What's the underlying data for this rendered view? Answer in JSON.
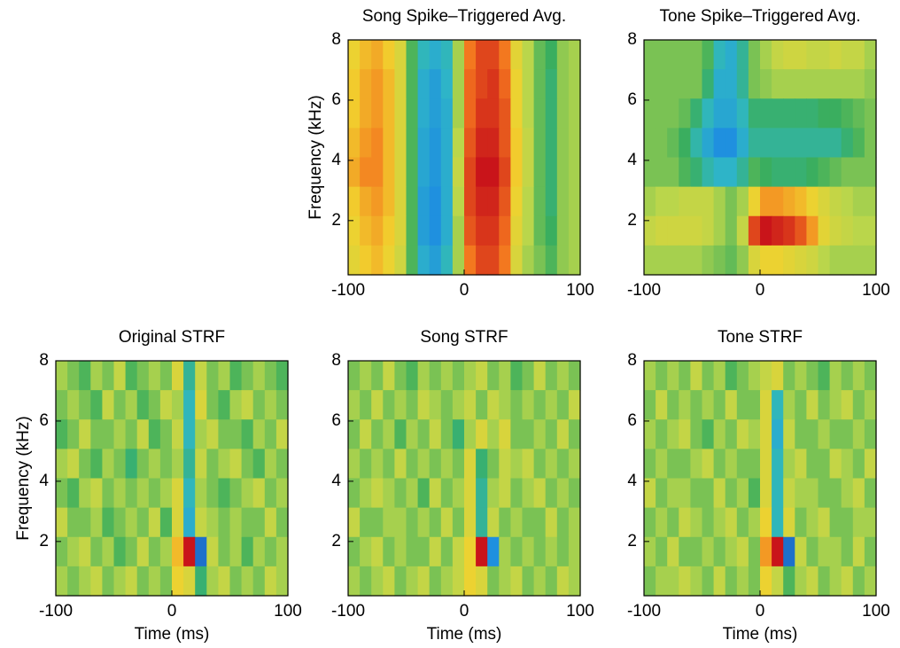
{
  "chart_data": [
    {
      "type": "heatmap",
      "title": "Song Spike–Triggered Avg.",
      "ylabel": "Frequency (kHz)",
      "xlim": [
        -100,
        100
      ],
      "ylim": [
        0.2,
        8
      ],
      "xticks": [
        -100,
        0,
        100
      ],
      "yticks": [
        2,
        4,
        6,
        8
      ],
      "zlim": [
        -1,
        1
      ],
      "colormap": [
        "#1c2a9c",
        "#1e8ee0",
        "#2fb7c6",
        "#3aae5c",
        "#b9d64c",
        "#f2d22e",
        "#f3731e",
        "#c9141a"
      ],
      "z": [
        [
          0.4,
          0.5,
          0.55,
          0.45,
          0.3,
          -0.1,
          -0.4,
          -0.5,
          -0.4,
          0.1,
          0.7,
          0.85,
          0.85,
          0.7,
          0.35,
          0.15,
          -0.05,
          -0.15,
          0.05,
          0.1
        ],
        [
          0.45,
          0.55,
          0.6,
          0.5,
          0.3,
          -0.1,
          -0.5,
          -0.6,
          -0.45,
          0.1,
          0.75,
          0.85,
          0.9,
          0.75,
          0.4,
          0.15,
          -0.05,
          -0.2,
          0.05,
          0.1
        ],
        [
          0.45,
          0.55,
          0.6,
          0.5,
          0.3,
          -0.1,
          -0.5,
          -0.6,
          -0.5,
          0.1,
          0.75,
          0.9,
          0.9,
          0.8,
          0.4,
          0.15,
          -0.05,
          -0.2,
          0.05,
          0.1
        ],
        [
          0.5,
          0.6,
          0.65,
          0.5,
          0.3,
          -0.1,
          -0.55,
          -0.65,
          -0.5,
          0.15,
          0.8,
          0.95,
          0.95,
          0.8,
          0.45,
          0.2,
          -0.05,
          -0.2,
          0.05,
          0.1
        ],
        [
          0.55,
          0.65,
          0.65,
          0.5,
          0.3,
          -0.1,
          -0.55,
          -0.65,
          -0.5,
          0.2,
          0.85,
          1,
          1,
          0.85,
          0.45,
          0.2,
          -0.05,
          -0.2,
          0.05,
          0.1
        ],
        [
          0.45,
          0.55,
          0.6,
          0.5,
          0.3,
          -0.1,
          -0.6,
          -0.7,
          -0.5,
          0.15,
          0.85,
          0.95,
          0.95,
          0.8,
          0.4,
          0.15,
          -0.05,
          -0.2,
          0.05,
          0.1
        ],
        [
          0.4,
          0.5,
          0.55,
          0.45,
          0.3,
          -0.1,
          -0.6,
          -0.7,
          -0.5,
          0.1,
          0.8,
          0.9,
          0.9,
          0.75,
          0.35,
          0.15,
          -0.05,
          -0.15,
          0.05,
          0.1
        ],
        [
          0.35,
          0.45,
          0.5,
          0.4,
          0.25,
          -0.1,
          -0.5,
          -0.6,
          -0.4,
          0.1,
          0.7,
          0.85,
          0.85,
          0.7,
          0.3,
          0.1,
          0,
          -0.1,
          0.05,
          0.1
        ]
      ]
    },
    {
      "type": "heatmap",
      "title": "Tone Spike–Triggered Avg.",
      "xlim": [
        -100,
        100
      ],
      "ylim": [
        0.2,
        8
      ],
      "xticks": [
        -100,
        0,
        100
      ],
      "yticks": [
        2,
        4,
        6,
        8
      ],
      "zlim": [
        -1,
        1
      ],
      "colormap": [
        "#1c2a9c",
        "#1e8ee0",
        "#2fb7c6",
        "#3aae5c",
        "#b9d64c",
        "#f2d22e",
        "#f3731e",
        "#c9141a"
      ],
      "z": [
        [
          0,
          0,
          0,
          0,
          0,
          -0.1,
          -0.4,
          -0.5,
          -0.3,
          0,
          0.1,
          0.2,
          0.25,
          0.25,
          0.2,
          0.2,
          0.25,
          0.2,
          0.2,
          0.1
        ],
        [
          0,
          0,
          0,
          0,
          0,
          -0.2,
          -0.5,
          -0.5,
          -0.3,
          0,
          0.05,
          0.1,
          0.1,
          0.1,
          0.1,
          0.1,
          0.1,
          0.1,
          0.1,
          0.05
        ],
        [
          0,
          0,
          0,
          -0.05,
          -0.2,
          -0.4,
          -0.55,
          -0.55,
          -0.4,
          -0.2,
          -0.2,
          -0.2,
          -0.2,
          -0.2,
          -0.2,
          -0.15,
          -0.15,
          -0.1,
          -0.05,
          0
        ],
        [
          0,
          0,
          -0.05,
          -0.15,
          -0.35,
          -0.55,
          -0.7,
          -0.7,
          -0.5,
          -0.3,
          -0.3,
          -0.3,
          -0.3,
          -0.3,
          -0.3,
          -0.3,
          -0.3,
          -0.2,
          -0.1,
          0
        ],
        [
          0,
          0,
          0,
          -0.1,
          -0.2,
          -0.35,
          -0.45,
          -0.45,
          -0.3,
          -0.1,
          -0.15,
          -0.2,
          -0.2,
          -0.2,
          -0.15,
          -0.1,
          -0.05,
          0,
          0,
          0
        ],
        [
          0.1,
          0.15,
          0.15,
          0.2,
          0.2,
          0.2,
          0.1,
          0,
          0.1,
          0.4,
          0.6,
          0.6,
          0.55,
          0.5,
          0.4,
          0.3,
          0.2,
          0.15,
          0.1,
          0.1
        ],
        [
          0.2,
          0.25,
          0.25,
          0.25,
          0.25,
          0.2,
          0.1,
          0,
          0.2,
          0.85,
          1,
          0.95,
          0.9,
          0.8,
          0.6,
          0.35,
          0.25,
          0.2,
          0.15,
          0.15
        ],
        [
          0.1,
          0.1,
          0.1,
          0.1,
          0.1,
          0.05,
          0,
          -0.05,
          0.05,
          0.3,
          0.4,
          0.4,
          0.35,
          0.3,
          0.25,
          0.15,
          0.1,
          0.1,
          0.1,
          0.1
        ]
      ]
    },
    {
      "type": "heatmap",
      "title": "Original STRF",
      "xlabel": "Time (ms)",
      "ylabel": "Frequency (kHz)",
      "xlim": [
        -100,
        100
      ],
      "ylim": [
        0.2,
        8
      ],
      "xticks": [
        -100,
        0,
        100
      ],
      "yticks": [
        2,
        4,
        6,
        8
      ],
      "zlim": [
        -1,
        1
      ],
      "colormap": [
        "#1c2a9c",
        "#1e8ee0",
        "#2fb7c6",
        "#3aae5c",
        "#b9d64c",
        "#f2d22e",
        "#f3731e",
        "#c9141a"
      ],
      "z": [
        [
          0.1,
          0,
          -0.1,
          0.1,
          0,
          0.2,
          -0.1,
          0,
          0.1,
          0,
          0.3,
          -0.3,
          0.2,
          0,
          0.1,
          -0.1,
          0,
          0.1,
          0,
          -0.1
        ],
        [
          0,
          0.1,
          0,
          -0.1,
          0.2,
          0,
          0.1,
          -0.1,
          0,
          0.2,
          0.1,
          -0.4,
          0.3,
          0,
          -0.1,
          0.1,
          0.2,
          0,
          0.1,
          0
        ],
        [
          -0.1,
          0,
          0.2,
          0,
          0,
          0.1,
          0,
          0.2,
          -0.1,
          0,
          0.2,
          -0.4,
          0.1,
          0.2,
          0,
          0,
          -0.1,
          0.1,
          0,
          0.2
        ],
        [
          0.1,
          0.2,
          0,
          -0.1,
          0.1,
          0,
          -0.2,
          0,
          0.1,
          0,
          0.1,
          -0.3,
          0.2,
          0,
          0.1,
          0.2,
          0,
          -0.1,
          0.1,
          0
        ],
        [
          0,
          -0.1,
          0.1,
          0.2,
          0,
          0.1,
          0,
          0.1,
          0,
          0.1,
          0.3,
          -0.4,
          0.1,
          0,
          -0.1,
          0,
          0.1,
          0.2,
          0,
          0.1
        ],
        [
          0.2,
          0,
          0,
          0.1,
          -0.1,
          0,
          0.1,
          0,
          0.2,
          -0.1,
          0.3,
          -0.5,
          0.2,
          0.1,
          0,
          0.1,
          0,
          0,
          0.2,
          0
        ],
        [
          0,
          0.1,
          0.2,
          0,
          0.1,
          -0.1,
          0,
          0.2,
          0,
          0.1,
          0.5,
          1,
          -0.8,
          0.2,
          0,
          0.1,
          -0.1,
          0.1,
          0,
          0.1
        ],
        [
          0.1,
          0,
          0.1,
          0.2,
          0,
          0.1,
          0.2,
          0,
          0.1,
          0,
          0.4,
          0.3,
          -0.2,
          0.1,
          0.2,
          0,
          0.1,
          0,
          0.2,
          0.1
        ]
      ]
    },
    {
      "type": "heatmap",
      "title": "Song STRF",
      "xlabel": "Time (ms)",
      "xlim": [
        -100,
        100
      ],
      "ylim": [
        0.2,
        8
      ],
      "xticks": [
        -100,
        0,
        100
      ],
      "yticks": [
        2,
        4,
        6,
        8
      ],
      "zlim": [
        -1,
        1
      ],
      "colormap": [
        "#1c2a9c",
        "#1e8ee0",
        "#2fb7c6",
        "#3aae5c",
        "#b9d64c",
        "#f2d22e",
        "#f3731e",
        "#c9141a"
      ],
      "z": [
        [
          0,
          0.1,
          0,
          0.2,
          0,
          -0.1,
          0.1,
          0,
          0.1,
          0,
          0.1,
          0.2,
          0,
          0.1,
          -0.1,
          0,
          0.2,
          0,
          0.1,
          0
        ],
        [
          0.1,
          0,
          0.2,
          0,
          0.1,
          0,
          0.2,
          0.1,
          0,
          0.1,
          0.2,
          0,
          0.2,
          0.1,
          0,
          0.1,
          0,
          0.1,
          0,
          0.2
        ],
        [
          0,
          0.2,
          0,
          0.1,
          -0.1,
          0.1,
          0,
          0.2,
          0,
          -0.2,
          0.1,
          0.3,
          0.1,
          0.3,
          0,
          0,
          0.1,
          0,
          0.2,
          0
        ],
        [
          0.1,
          0,
          0.1,
          0,
          0.2,
          0,
          0.1,
          0,
          0.1,
          0,
          0.3,
          -0.2,
          0,
          0.2,
          0.1,
          0.2,
          0,
          0.1,
          0,
          0.1
        ],
        [
          0,
          0.1,
          0.2,
          0.1,
          0,
          0.1,
          -0.1,
          0.2,
          0,
          0.1,
          0.3,
          -0.3,
          0.1,
          0.2,
          0,
          0.1,
          0.2,
          0,
          0.1,
          0
        ],
        [
          0.2,
          0,
          0,
          0.1,
          0.1,
          0,
          0.1,
          0,
          0.2,
          0,
          0.3,
          -0.3,
          0.2,
          0,
          0.1,
          0,
          0,
          0.2,
          0,
          0.1
        ],
        [
          0,
          0.1,
          0.2,
          0,
          0.1,
          0,
          0,
          0.2,
          0,
          0.2,
          0.4,
          1,
          -0.7,
          0.1,
          0,
          0.1,
          0,
          0.1,
          0,
          0.1
        ],
        [
          0.1,
          0,
          0.1,
          0.2,
          0,
          0.1,
          0.2,
          0,
          0.1,
          0.2,
          0.4,
          0.3,
          0,
          0.1,
          0.2,
          0,
          0.1,
          0,
          0.2,
          0.1
        ]
      ]
    },
    {
      "type": "heatmap",
      "title": "Tone STRF",
      "xlabel": "Time (ms)",
      "xlim": [
        -100,
        100
      ],
      "ylim": [
        0.2,
        8
      ],
      "xticks": [
        -100,
        0,
        100
      ],
      "yticks": [
        2,
        4,
        6,
        8
      ],
      "zlim": [
        -1,
        1
      ],
      "colormap": [
        "#1c2a9c",
        "#1e8ee0",
        "#2fb7c6",
        "#3aae5c",
        "#b9d64c",
        "#f2d22e",
        "#f3731e",
        "#c9141a"
      ],
      "z": [
        [
          0.1,
          0,
          0.1,
          0,
          0.2,
          0,
          0.1,
          -0.1,
          0,
          0.1,
          0.2,
          0.3,
          0,
          0.1,
          0,
          -0.1,
          0.1,
          0,
          0.1,
          0
        ],
        [
          0,
          0.2,
          0,
          0.1,
          0,
          0.1,
          0,
          0.2,
          0,
          0,
          0.3,
          -0.4,
          0.1,
          0,
          0.2,
          0,
          0.1,
          0.2,
          0,
          0.1
        ],
        [
          0.1,
          0,
          0.1,
          0.2,
          0,
          -0.1,
          0.1,
          0,
          0.2,
          0.1,
          0.3,
          -0.5,
          0.2,
          0,
          0,
          0.1,
          0,
          0,
          0.1,
          0
        ],
        [
          0,
          0.1,
          0,
          0,
          0.1,
          0.2,
          0,
          0.1,
          0,
          0,
          0.3,
          -0.4,
          0.1,
          0.2,
          0,
          0,
          0.2,
          0.1,
          0,
          0.2
        ],
        [
          0.2,
          0,
          0.1,
          0.1,
          0,
          0,
          0.2,
          0,
          0.1,
          -0.1,
          0.3,
          -0.4,
          0.2,
          0.1,
          0.1,
          0,
          0,
          0.1,
          0.2,
          0
        ],
        [
          0,
          0.1,
          0,
          0.2,
          0.1,
          0,
          0.1,
          0.2,
          0,
          0.1,
          0.4,
          -0.4,
          0.3,
          0,
          0.1,
          0.2,
          0,
          0,
          0.1,
          0.1
        ],
        [
          0.1,
          0,
          0.2,
          0,
          0,
          0.1,
          0,
          0.1,
          0.2,
          0,
          0.6,
          1,
          -0.8,
          0.2,
          0,
          0.1,
          0.1,
          0,
          0.2,
          0
        ],
        [
          0,
          0.1,
          0.1,
          0.2,
          0.1,
          0,
          0.2,
          0,
          0.1,
          0,
          0.4,
          0.2,
          -0.1,
          0.1,
          0.2,
          0,
          0.1,
          0.2,
          0,
          0.1
        ]
      ]
    }
  ]
}
